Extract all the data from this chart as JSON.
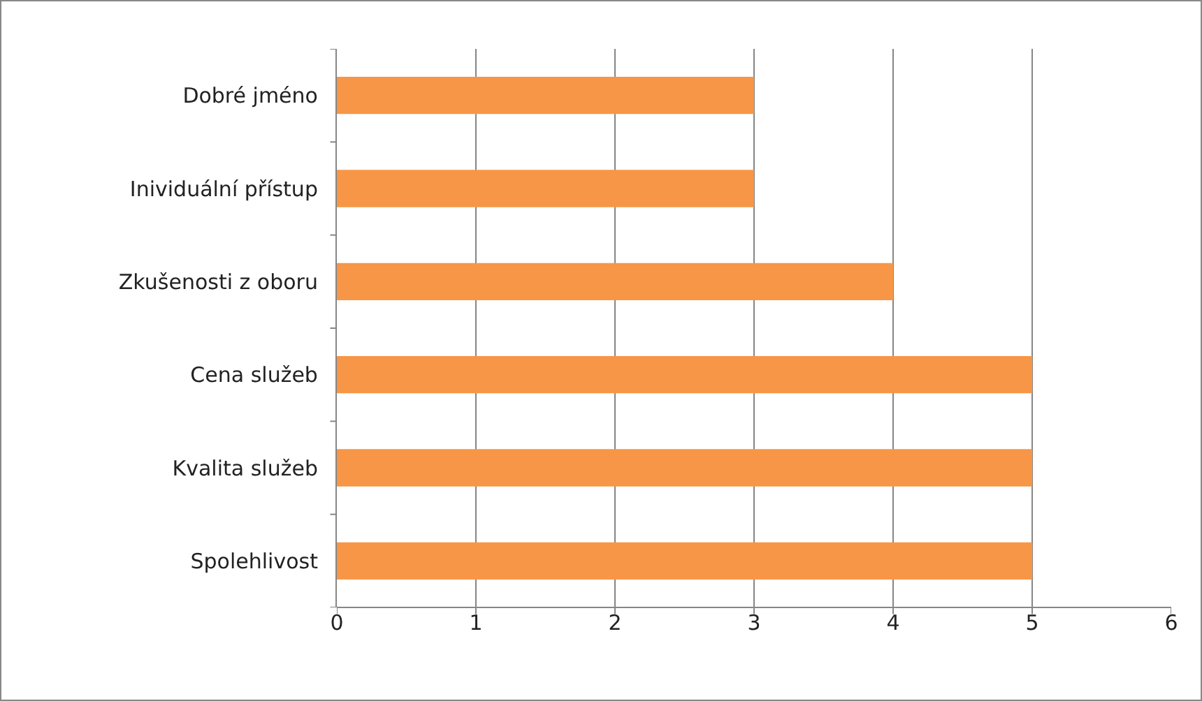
{
  "chart_data": {
    "type": "bar",
    "orientation": "horizontal",
    "categories": [
      "Dobré jméno",
      "Inividuální přístup",
      "Zkušenosti z oboru",
      "Cena služeb",
      "Kvalita služeb",
      "Spolehlivost"
    ],
    "values": [
      3,
      3,
      4,
      5,
      5,
      5
    ],
    "color": "#f79646",
    "xlim": [
      0,
      6
    ],
    "xticks": [
      0,
      1,
      2,
      3,
      4,
      5,
      6
    ],
    "grid": "x"
  }
}
